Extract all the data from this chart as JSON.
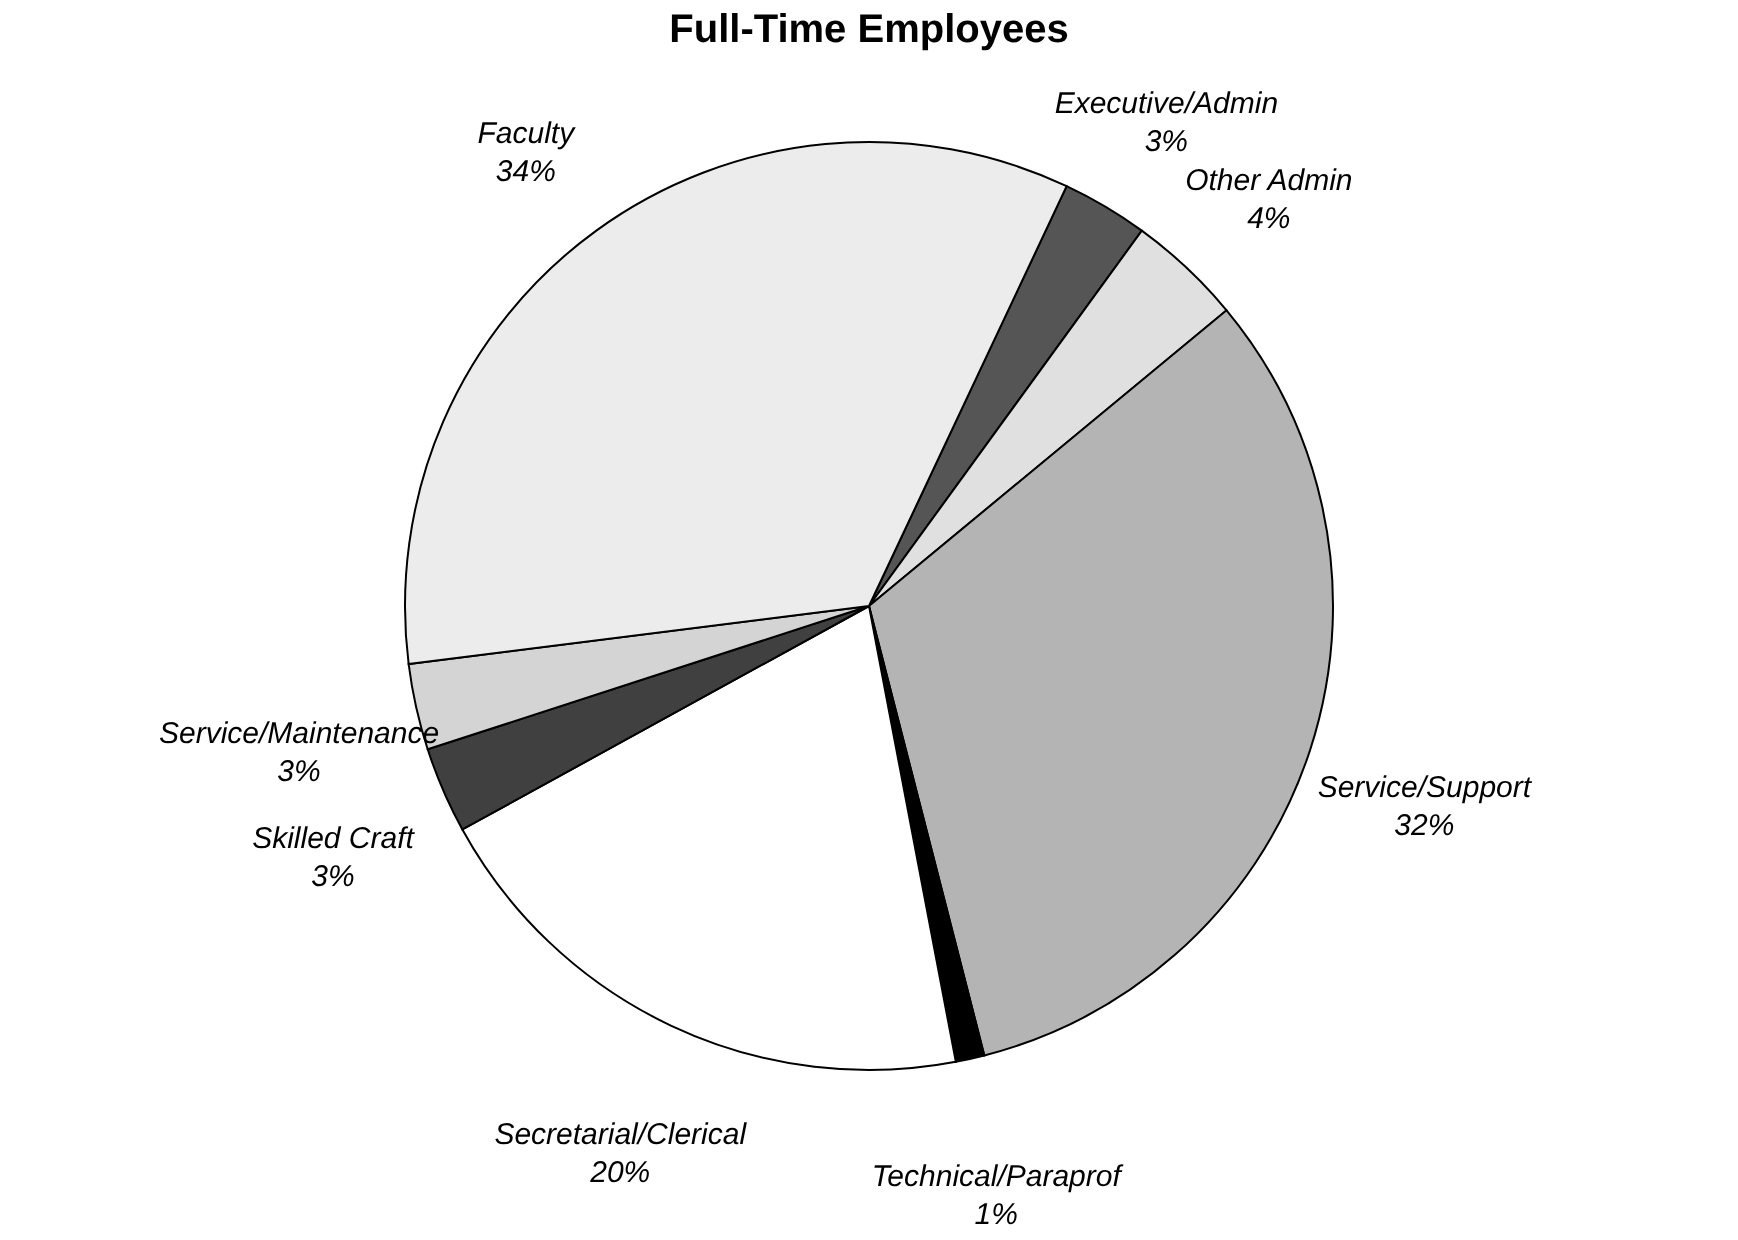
{
  "chart_data": {
    "type": "pie",
    "title": "Full-Time Employees",
    "categories": [
      "Executive/Admin",
      "Other Admin",
      "Service/Support",
      "Technical/Paraprof",
      "Secretarial/Clerical",
      "Skilled Craft",
      "Service/Maintenance",
      "Faculty"
    ],
    "values": [
      3,
      4,
      32,
      1,
      20,
      3,
      3,
      34
    ],
    "value_labels": [
      "3%",
      "4%",
      "32%",
      "1%",
      "20%",
      "3%",
      "3%",
      "34%"
    ],
    "colors": [
      "#555555",
      "#e0e0e0",
      "#b4b4b4",
      "#000000",
      "#ffffff",
      "#404040",
      "#d4d4d4",
      "#ececec"
    ],
    "legend": false
  }
}
